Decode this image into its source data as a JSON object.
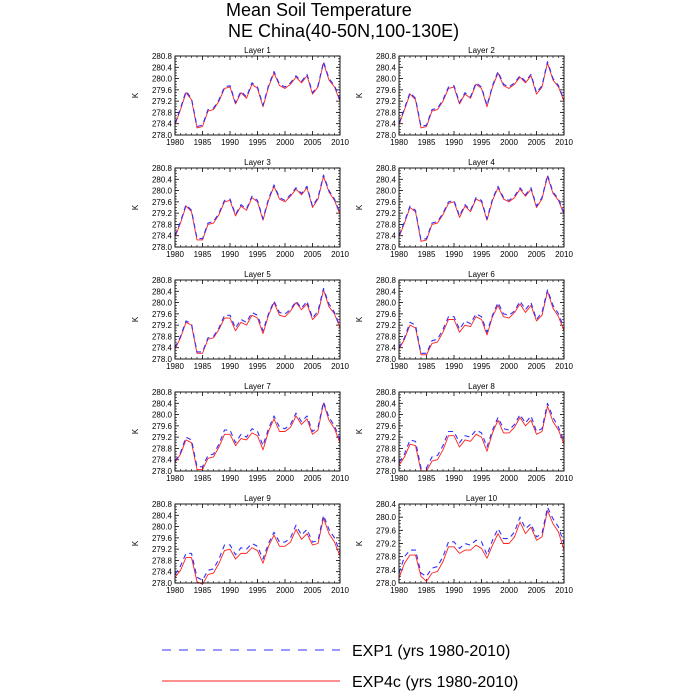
{
  "chart_data": {
    "type": "line",
    "title_line1": "Mean Soil Temperature",
    "title_line2": "NE China(40-50N,100-130E)",
    "ylabel": "K",
    "x_ticks": [
      "1980",
      "1985",
      "1990",
      "1995",
      "2000",
      "2005",
      "2010"
    ],
    "x_range": [
      1980,
      2010
    ],
    "legend": [
      {
        "label": "EXP1 (yrs 1980-2010)",
        "color": "#3030ff",
        "dash": "dashed"
      },
      {
        "label": "EXP4c (yrs 1980-2010)",
        "color": "#ff2020",
        "dash": "solid"
      }
    ],
    "years": [
      1980,
      1981,
      1982,
      1983,
      1984,
      1985,
      1986,
      1987,
      1988,
      1989,
      1990,
      1991,
      1992,
      1993,
      1994,
      1995,
      1996,
      1997,
      1998,
      1999,
      2000,
      2001,
      2002,
      2003,
      2004,
      2005,
      2006,
      2007,
      2008,
      2009,
      2010
    ],
    "panels": [
      {
        "title": "Layer 1",
        "y_ticks": [
          "278.0",
          "278.4",
          "278.8",
          "279.2",
          "279.6",
          "280.0",
          "280.4",
          "280.8"
        ],
        "ylim": [
          278.0,
          280.8
        ],
        "series": [
          {
            "name": "EXP1",
            "values": [
              278.4,
              278.95,
              279.55,
              279.3,
              278.3,
              278.35,
              278.9,
              278.95,
              279.25,
              279.7,
              279.75,
              279.15,
              279.55,
              279.35,
              279.85,
              279.7,
              279.05,
              279.75,
              280.25,
              279.8,
              279.7,
              279.85,
              280.1,
              279.9,
              280.15,
              279.5,
              279.75,
              280.6,
              280.0,
              279.75,
              279.25
            ]
          },
          {
            "name": "EXP4c",
            "values": [
              278.35,
              278.9,
              279.5,
              279.25,
              278.25,
              278.3,
              278.85,
              278.9,
              279.2,
              279.65,
              279.7,
              279.1,
              279.5,
              279.3,
              279.8,
              279.65,
              279.0,
              279.7,
              280.2,
              279.75,
              279.65,
              279.8,
              280.05,
              279.85,
              280.1,
              279.45,
              279.7,
              280.55,
              279.95,
              279.7,
              279.2
            ]
          }
        ]
      },
      {
        "title": "Layer 2",
        "y_ticks": [
          "278.0",
          "278.4",
          "278.8",
          "279.2",
          "279.6",
          "280.0",
          "280.4",
          "280.8"
        ],
        "ylim": [
          278.0,
          280.8
        ],
        "series": [
          {
            "name": "EXP1",
            "values": [
              278.4,
              278.95,
              279.5,
              279.3,
              278.3,
              278.35,
              278.9,
              278.95,
              279.25,
              279.7,
              279.75,
              279.15,
              279.5,
              279.35,
              279.85,
              279.7,
              279.05,
              279.75,
              280.25,
              279.8,
              279.7,
              279.85,
              280.1,
              279.9,
              280.15,
              279.5,
              279.75,
              280.6,
              280.0,
              279.75,
              279.25
            ]
          },
          {
            "name": "EXP4c",
            "values": [
              278.35,
              278.9,
              279.45,
              279.25,
              278.25,
              278.3,
              278.85,
              278.9,
              279.2,
              279.65,
              279.7,
              279.1,
              279.45,
              279.3,
              279.8,
              279.65,
              279.0,
              279.7,
              280.2,
              279.75,
              279.65,
              279.8,
              280.05,
              279.85,
              280.1,
              279.45,
              279.7,
              280.55,
              279.95,
              279.7,
              279.2
            ]
          }
        ]
      },
      {
        "title": "Layer 3",
        "y_ticks": [
          "278.0",
          "278.4",
          "278.8",
          "279.2",
          "279.6",
          "280.0",
          "280.4",
          "280.8"
        ],
        "ylim": [
          278.0,
          280.8
        ],
        "series": [
          {
            "name": "EXP1",
            "values": [
              278.4,
              278.9,
              279.5,
              279.3,
              278.3,
              278.3,
              278.85,
              278.9,
              279.2,
              279.65,
              279.7,
              279.15,
              279.5,
              279.35,
              279.8,
              279.65,
              279.0,
              279.7,
              280.2,
              279.75,
              279.65,
              279.85,
              280.1,
              279.9,
              280.15,
              279.45,
              279.75,
              280.55,
              280.0,
              279.7,
              279.2
            ]
          },
          {
            "name": "EXP4c",
            "values": [
              278.35,
              278.85,
              279.45,
              279.25,
              278.25,
              278.25,
              278.8,
              278.85,
              279.15,
              279.6,
              279.65,
              279.1,
              279.45,
              279.3,
              279.75,
              279.6,
              278.95,
              279.65,
              280.15,
              279.7,
              279.6,
              279.8,
              280.05,
              279.85,
              280.1,
              279.4,
              279.7,
              280.5,
              279.95,
              279.65,
              279.15
            ]
          }
        ]
      },
      {
        "title": "Layer 4",
        "y_ticks": [
          "278.0",
          "278.4",
          "278.8",
          "279.2",
          "279.6",
          "280.0",
          "280.4",
          "280.8"
        ],
        "ylim": [
          278.0,
          280.8
        ],
        "series": [
          {
            "name": "EXP1",
            "values": [
              278.4,
              278.9,
              279.45,
              279.3,
              278.25,
              278.3,
              278.85,
              278.9,
              279.2,
              279.6,
              279.65,
              279.1,
              279.5,
              279.3,
              279.75,
              279.65,
              279.0,
              279.7,
              280.15,
              279.75,
              279.65,
              279.8,
              280.1,
              279.85,
              280.1,
              279.45,
              279.75,
              280.55,
              279.95,
              279.7,
              279.2
            ]
          },
          {
            "name": "EXP4c",
            "values": [
              278.35,
              278.85,
              279.4,
              279.25,
              278.2,
              278.25,
              278.8,
              278.85,
              279.15,
              279.55,
              279.6,
              279.05,
              279.45,
              279.25,
              279.7,
              279.6,
              278.95,
              279.65,
              280.1,
              279.7,
              279.6,
              279.75,
              280.05,
              279.8,
              280.05,
              279.4,
              279.7,
              280.5,
              279.9,
              279.65,
              279.15
            ]
          }
        ]
      },
      {
        "title": "Layer 5",
        "y_ticks": [
          "278.0",
          "278.4",
          "278.8",
          "279.2",
          "279.6",
          "280.0",
          "280.4",
          "280.8"
        ],
        "ylim": [
          278.0,
          280.8
        ],
        "series": [
          {
            "name": "EXP1",
            "values": [
              278.4,
              278.8,
              279.35,
              279.25,
              278.25,
              278.25,
              278.75,
              278.8,
              279.1,
              279.55,
              279.55,
              279.1,
              279.4,
              279.3,
              279.65,
              279.55,
              279.0,
              279.6,
              280.05,
              279.65,
              279.6,
              279.75,
              280.05,
              279.8,
              280.05,
              279.45,
              279.7,
              280.5,
              279.95,
              279.65,
              279.15
            ]
          },
          {
            "name": "EXP4c",
            "values": [
              278.35,
              278.75,
              279.3,
              279.2,
              278.2,
              278.2,
              278.7,
              278.75,
              279.05,
              279.45,
              279.45,
              279.0,
              279.3,
              279.2,
              279.55,
              279.45,
              278.9,
              279.55,
              280.0,
              279.55,
              279.5,
              279.7,
              280.0,
              279.75,
              279.95,
              279.4,
              279.6,
              280.45,
              279.85,
              279.6,
              279.1
            ]
          }
        ]
      },
      {
        "title": "Layer 6",
        "y_ticks": [
          "278.0",
          "278.4",
          "278.8",
          "279.2",
          "279.6",
          "280.0",
          "280.4",
          "280.8"
        ],
        "ylim": [
          278.0,
          280.8
        ],
        "series": [
          {
            "name": "EXP1",
            "values": [
              278.4,
              278.75,
              279.3,
              279.2,
              278.2,
              278.2,
              278.65,
              278.7,
              279.05,
              279.5,
              279.5,
              279.05,
              279.35,
              279.25,
              279.6,
              279.5,
              278.95,
              279.55,
              280.0,
              279.6,
              279.55,
              279.7,
              280.05,
              279.75,
              280.0,
              279.4,
              279.65,
              280.45,
              279.9,
              279.6,
              279.1
            ]
          },
          {
            "name": "EXP4c",
            "values": [
              278.35,
              278.7,
              279.2,
              279.1,
              278.15,
              278.15,
              278.55,
              278.6,
              278.95,
              279.4,
              279.4,
              278.95,
              279.2,
              279.15,
              279.5,
              279.4,
              278.85,
              279.5,
              279.9,
              279.5,
              279.45,
              279.65,
              279.95,
              279.65,
              279.9,
              279.35,
              279.55,
              280.4,
              279.8,
              279.5,
              279.0
            ]
          }
        ]
      },
      {
        "title": "Layer 7",
        "y_ticks": [
          "278.0",
          "278.4",
          "278.8",
          "279.2",
          "279.6",
          "280.0",
          "280.4",
          "280.8"
        ],
        "ylim": [
          278.0,
          280.8
        ],
        "series": [
          {
            "name": "EXP1",
            "values": [
              278.35,
              278.65,
              279.2,
              279.1,
              278.15,
              278.15,
              278.55,
              278.6,
              278.95,
              279.45,
              279.45,
              279.0,
              279.3,
              279.2,
              279.5,
              279.4,
              278.9,
              279.5,
              279.95,
              279.55,
              279.5,
              279.65,
              280.05,
              279.75,
              279.95,
              279.4,
              279.55,
              280.45,
              279.9,
              279.6,
              279.1
            ]
          },
          {
            "name": "EXP4c",
            "values": [
              278.3,
              278.6,
              279.1,
              279.0,
              278.05,
              278.05,
              278.45,
              278.5,
              278.85,
              279.3,
              279.3,
              278.9,
              279.15,
              279.1,
              279.35,
              279.25,
              278.75,
              279.4,
              279.85,
              279.4,
              279.4,
              279.55,
              279.95,
              279.65,
              279.85,
              279.3,
              279.45,
              280.4,
              279.8,
              279.5,
              279.0
            ]
          }
        ]
      },
      {
        "title": "Layer 8",
        "y_ticks": [
          "278.0",
          "278.4",
          "278.8",
          "279.2",
          "279.6",
          "280.0",
          "280.4",
          "280.8"
        ],
        "ylim": [
          278.0,
          280.8
        ],
        "series": [
          {
            "name": "EXP1",
            "values": [
              278.3,
              278.6,
              279.1,
              279.05,
              278.1,
              278.1,
              278.5,
              278.55,
              278.9,
              279.4,
              279.4,
              279.0,
              279.25,
              279.2,
              279.45,
              279.35,
              278.85,
              279.45,
              279.9,
              279.5,
              279.45,
              279.65,
              280.0,
              279.7,
              279.95,
              279.4,
              279.5,
              280.4,
              279.9,
              279.55,
              279.05
            ]
          },
          {
            "name": "EXP4c",
            "values": [
              278.2,
              278.5,
              278.95,
              278.9,
              278.0,
              278.0,
              278.35,
              278.4,
              278.75,
              279.25,
              279.25,
              278.85,
              279.1,
              279.05,
              279.3,
              279.2,
              278.7,
              279.35,
              279.8,
              279.35,
              279.35,
              279.55,
              279.9,
              279.6,
              279.8,
              279.3,
              279.4,
              280.3,
              279.75,
              279.45,
              278.95
            ]
          }
        ]
      },
      {
        "title": "Layer 9",
        "y_ticks": [
          "278.0",
          "278.4",
          "278.8",
          "279.2",
          "279.6",
          "280.0",
          "280.4",
          "280.8"
        ],
        "ylim": [
          278.0,
          280.8
        ],
        "series": [
          {
            "name": "EXP1",
            "values": [
              278.3,
              278.6,
              279.05,
              279.05,
              278.2,
              278.1,
              278.45,
              278.5,
              278.85,
              279.35,
              279.35,
              279.0,
              279.25,
              279.2,
              279.4,
              279.3,
              278.85,
              279.4,
              279.8,
              279.45,
              279.45,
              279.6,
              280.05,
              279.7,
              279.9,
              279.45,
              279.5,
              280.4,
              279.9,
              279.6,
              279.1
            ]
          },
          {
            "name": "EXP4c",
            "values": [
              278.2,
              278.45,
              278.9,
              278.9,
              278.05,
              277.95,
              278.3,
              278.35,
              278.7,
              279.15,
              279.2,
              278.85,
              279.05,
              279.05,
              279.25,
              279.15,
              278.7,
              279.3,
              279.7,
              279.3,
              279.3,
              279.45,
              279.9,
              279.55,
              279.75,
              279.35,
              279.4,
              280.3,
              279.75,
              279.45,
              278.95
            ]
          }
        ]
      },
      {
        "title": "Layer 10",
        "y_ticks": [
          "278.0",
          "278.4",
          "278.8",
          "279.2",
          "279.6",
          "280.0",
          "280.4"
        ],
        "ylim": [
          278.0,
          280.4
        ],
        "series": [
          {
            "name": "EXP1",
            "values": [
              278.3,
              278.8,
              279.0,
              279.0,
              278.3,
              278.2,
              278.45,
              278.5,
              278.8,
              279.25,
              279.25,
              279.05,
              279.2,
              279.15,
              279.3,
              279.25,
              278.85,
              279.3,
              279.65,
              279.35,
              279.35,
              279.55,
              280.0,
              279.65,
              279.8,
              279.4,
              279.5,
              280.3,
              279.95,
              279.7,
              279.2
            ]
          },
          {
            "name": "EXP4c",
            "values": [
              278.15,
              278.6,
              278.85,
              278.85,
              278.2,
              278.05,
              278.3,
              278.35,
              278.65,
              279.1,
              279.1,
              278.9,
              279.0,
              279.0,
              279.15,
              279.05,
              278.75,
              279.15,
              279.5,
              279.2,
              279.2,
              279.4,
              279.85,
              279.5,
              279.7,
              279.3,
              279.4,
              280.2,
              279.8,
              279.55,
              279.0
            ]
          }
        ]
      }
    ]
  }
}
